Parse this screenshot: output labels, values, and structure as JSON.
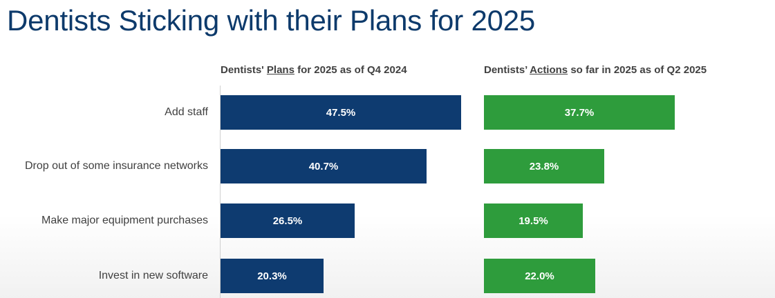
{
  "title": "Dentists Sticking with their Plans for 2025",
  "panels": {
    "plans": {
      "heading_pre": "Dentists' ",
      "heading_underlined": "Plans",
      "heading_post": " for 2025 as of Q4 2024"
    },
    "actions": {
      "heading_pre": "Dentists’ ",
      "heading_underlined": "Actions",
      "heading_post": " so far in 2025 as of Q2 2025"
    }
  },
  "colors": {
    "title": "#0d3a6b",
    "plans_bar": "#0e3b70",
    "actions_bar": "#2e9c3c"
  },
  "chart_data": [
    {
      "type": "bar",
      "orientation": "horizontal",
      "title": "Dentists' Plans for 2025 as of Q4 2024",
      "categories": [
        "Add staff",
        "Drop out of some insurance networks",
        "Make major equipment purchases",
        "Invest in new software"
      ],
      "values": [
        47.5,
        40.7,
        26.5,
        20.3
      ],
      "value_labels": [
        "47.5%",
        "40.7%",
        "26.5%",
        "20.3%"
      ],
      "unit": "%",
      "xlim": [
        0,
        50
      ],
      "grid": false,
      "color": "#0e3b70"
    },
    {
      "type": "bar",
      "orientation": "horizontal",
      "title": "Dentists’ Actions so far in 2025 as of Q2 2025",
      "categories": [
        "Add staff",
        "Drop out of some insurance networks",
        "Make major equipment purchases",
        "Invest in new software"
      ],
      "values": [
        37.7,
        23.8,
        19.5,
        22.0
      ],
      "value_labels": [
        "37.7%",
        "23.8%",
        "19.5%",
        "22.0%"
      ],
      "unit": "%",
      "xlim": [
        0,
        50
      ],
      "grid": false,
      "color": "#2e9c3c"
    }
  ]
}
